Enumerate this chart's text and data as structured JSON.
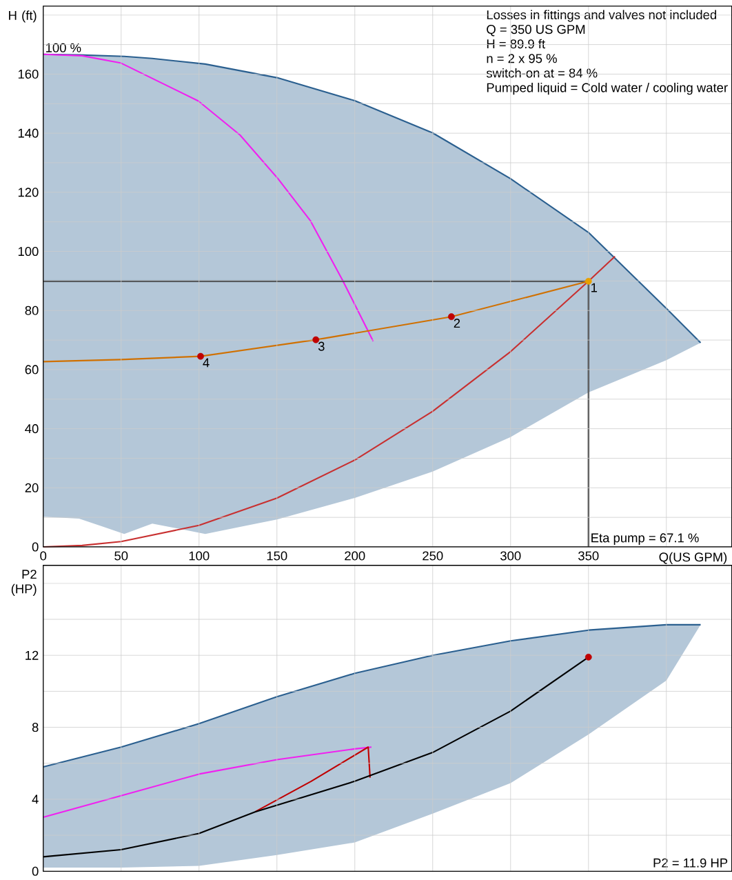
{
  "chart_data": [
    {
      "type": "line",
      "xlabel": "Q(US GPM)",
      "ylabel": "H (ft)",
      "xlim": [
        0,
        442
      ],
      "ylim": [
        0,
        183
      ],
      "grid": true,
      "xticks": [
        0,
        50,
        100,
        150,
        200,
        250,
        300,
        350,
        {
          "value": 400,
          "label": null
        }
      ],
      "yticks": [
        0,
        {
          "value": 10,
          "label": null
        },
        20,
        {
          "value": 30,
          "label": null
        },
        40,
        {
          "value": 50,
          "label": null
        },
        60,
        {
          "value": 70,
          "label": null
        },
        80,
        {
          "value": 90,
          "label": null
        },
        100,
        {
          "value": 110,
          "label": null
        },
        120,
        {
          "value": 130,
          "label": null
        },
        140,
        {
          "value": 150,
          "label": null
        },
        160,
        {
          "value": 170,
          "label": null
        },
        {
          "value": 180,
          "label": null
        }
      ],
      "series": [
        {
          "type": "line",
          "color": "#2a5f8f",
          "x": [
            0,
            23,
            52,
            70,
            104,
            150,
            200,
            250,
            300,
            350,
            400,
            422
          ],
          "values": [
            166.7,
            166.5,
            166,
            165.3,
            163.4,
            158.8,
            151,
            140.1,
            124.6,
            106.4,
            80.7,
            69.1
          ],
          "upper": [
            166.7,
            166.5,
            166,
            165.3,
            163.4,
            158.8,
            151,
            140.1,
            124.6,
            106.4,
            80.7,
            69.1
          ],
          "lower": [
            10.2,
            9.6,
            4.4,
            7.9,
            4.4,
            9.3,
            16.6,
            25.5,
            37.2,
            52.3,
            63.2,
            69.1
          ]
        },
        {
          "type": "line",
          "color": "#f020f0",
          "x": [
            0,
            25,
            49.6,
            99.6,
            126.3,
            150.7,
            171.6,
            192,
            211.8
          ],
          "values": [
            166.7,
            166.2,
            163.8,
            150.9,
            139.4,
            124.6,
            110.3,
            90.4,
            69.6
          ]
        },
        {
          "type": "line",
          "color": "#c83030",
          "x": [
            0,
            25,
            50,
            100,
            150,
            200,
            250,
            300,
            350,
            367
          ],
          "values": [
            0,
            0.5,
            1.8,
            7.3,
            16.5,
            29.4,
            45.9,
            66.1,
            89.9,
            98.3
          ]
        },
        {
          "type": "line",
          "color": "#000000",
          "x": [
            0,
            350,
            350
          ],
          "values": [
            89.9,
            89.9,
            0
          ]
        },
        {
          "type": "line",
          "color": "#d07000",
          "x": [
            0,
            50,
            101,
            175,
            262,
            350
          ],
          "values": [
            62.7,
            63.4,
            64.5,
            70.1,
            77.9,
            89.9
          ]
        },
        {
          "type": "scatter",
          "x": [
            350,
            262,
            175,
            101
          ],
          "values": [
            89.9,
            77.9,
            70.1,
            64.5
          ],
          "colors": [
            "#e8a000",
            "#c00000",
            "#c00000",
            "#c00000"
          ]
        }
      ],
      "annotations": [
        {
          "text": "100 %",
          "x": 0,
          "y": 166.7
        },
        "Losses in fittings and valves not included",
        "Q = 350 US GPM",
        "H = 89.9 ft",
        "n = 2 x 95 %",
        "switch-on at = 84  %",
        "Pumped liquid = Cold water / cooling water",
        {
          "text": "Eta pump = 67.1 %",
          "x": 350,
          "y": 0
        },
        {
          "text": "1",
          "x": 350,
          "y": 89.9
        },
        {
          "text": "2",
          "x": 262,
          "y": 77.9
        },
        {
          "text": "3",
          "x": 175,
          "y": 70.1
        },
        {
          "text": "4",
          "x": 101,
          "y": 64.5
        }
      ]
    },
    {
      "type": "line",
      "ylabel": "P2 (HP)",
      "xlim": [
        0,
        442
      ],
      "ylim": [
        0,
        17
      ],
      "grid": true,
      "tick_labels": "y",
      "xticks": [
        0,
        50,
        100,
        150,
        200,
        250,
        300,
        350,
        400
      ],
      "yticks": [
        0,
        {
          "value": 2,
          "label": null
        },
        4,
        {
          "value": 6,
          "label": null
        },
        8,
        {
          "value": 10,
          "label": null
        },
        12,
        {
          "value": 14,
          "label": null
        },
        {
          "value": 16,
          "label": null
        }
      ],
      "series": [
        {
          "type": "line",
          "color": "#2a5f8f",
          "x": [
            0,
            50,
            100,
            150,
            200,
            250,
            300,
            350,
            400,
            422
          ],
          "values": [
            5.8,
            6.9,
            8.2,
            9.7,
            11,
            12,
            12.8,
            13.4,
            13.7,
            13.7
          ],
          "upper": [
            5.8,
            6.9,
            8.2,
            9.7,
            11,
            12,
            12.8,
            13.4,
            13.7,
            13.7
          ],
          "lower": [
            0.2,
            0.2,
            0.3,
            0.9,
            1.6,
            3.2,
            4.9,
            7.6,
            10.6,
            13.7
          ]
        },
        {
          "type": "line",
          "color": "#f020f0",
          "x": [
            0,
            50,
            100,
            150,
            200,
            210.7
          ],
          "values": [
            3,
            4.2,
            5.4,
            6.2,
            6.8,
            6.9
          ]
        },
        {
          "type": "line",
          "color": "#c00000",
          "x": [
            136,
            172,
            208.6,
            209.8
          ],
          "values": [
            3.3,
            5,
            6.9,
            5.2
          ]
        },
        {
          "type": "line",
          "color": "#000000",
          "x": [
            0,
            50,
            100,
            136,
            200,
            250,
            300,
            350
          ],
          "values": [
            0.8,
            1.2,
            2.1,
            3.3,
            5,
            6.6,
            8.9,
            11.9
          ]
        },
        {
          "type": "scatter",
          "x": [
            350
          ],
          "values": [
            11.9
          ],
          "colors": [
            "#c00000"
          ]
        }
      ],
      "annotations": [
        "P2 = 11.9 HP"
      ]
    }
  ]
}
